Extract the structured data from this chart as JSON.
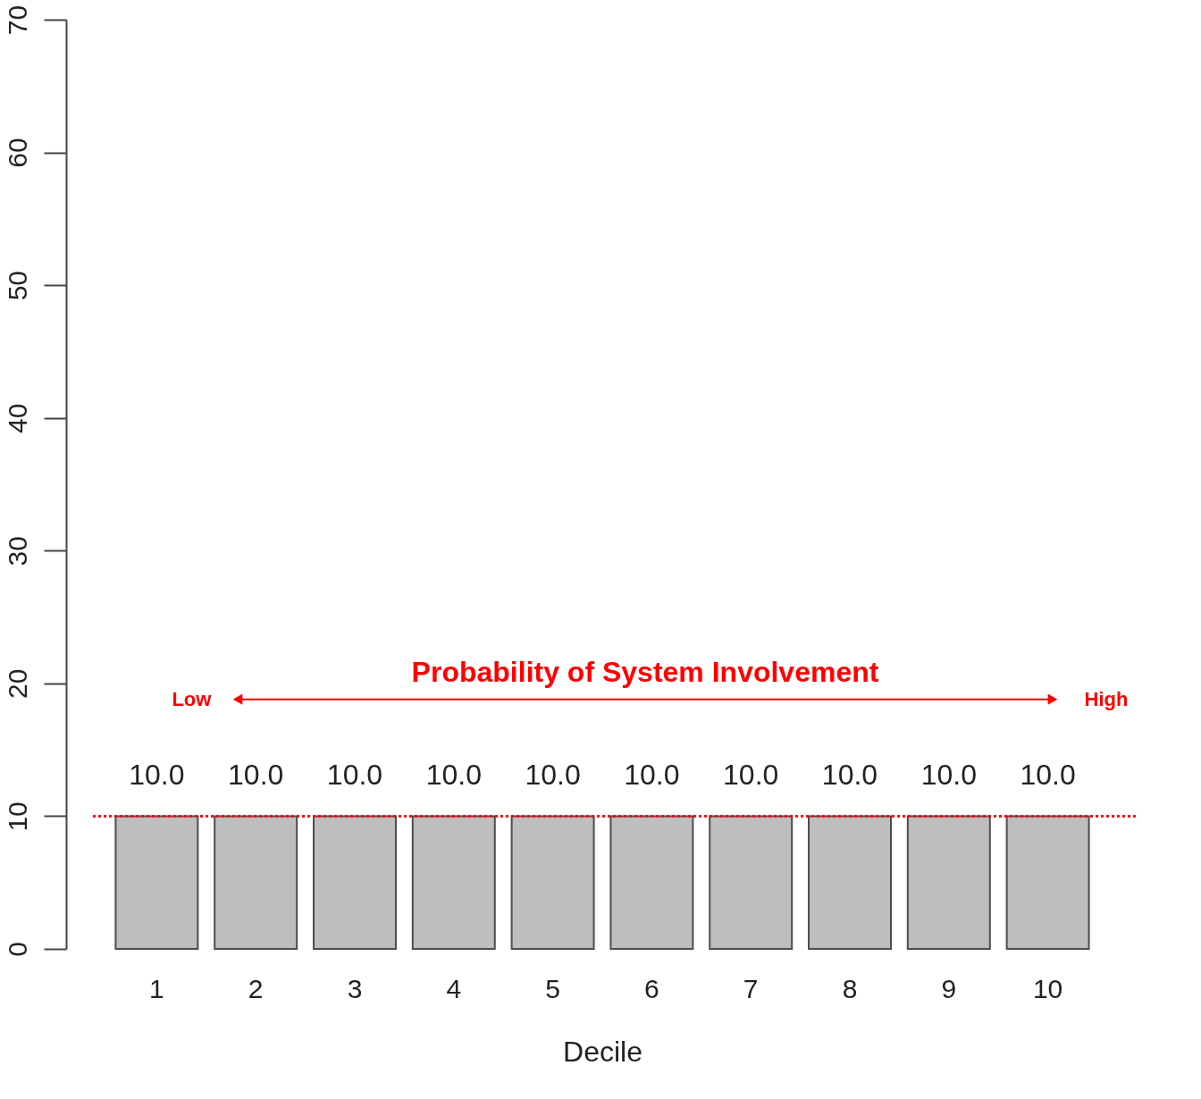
{
  "chart_data": {
    "type": "bar",
    "xlabel": "Decile",
    "categories": [
      "1",
      "2",
      "3",
      "4",
      "5",
      "6",
      "7",
      "8",
      "9",
      "10"
    ],
    "values": [
      10,
      10,
      10,
      10,
      10,
      10,
      10,
      10,
      10,
      10
    ],
    "value_labels": [
      "10.0",
      "10.0",
      "10.0",
      "10.0",
      "10.0",
      "10.0",
      "10.0",
      "10.0",
      "10.0",
      "10.0"
    ],
    "color": "#bebebe",
    "ylim": [
      0,
      70
    ],
    "yticks": [
      0,
      10,
      20,
      30,
      40,
      50,
      60,
      70
    ],
    "grid": false,
    "ref_lines": [
      {
        "axis": "y",
        "value": 10,
        "color": "#ff0000",
        "line_style": "dotted"
      }
    ],
    "annotations": [
      "Probability of System Involvement",
      "Low",
      "High"
    ]
  }
}
